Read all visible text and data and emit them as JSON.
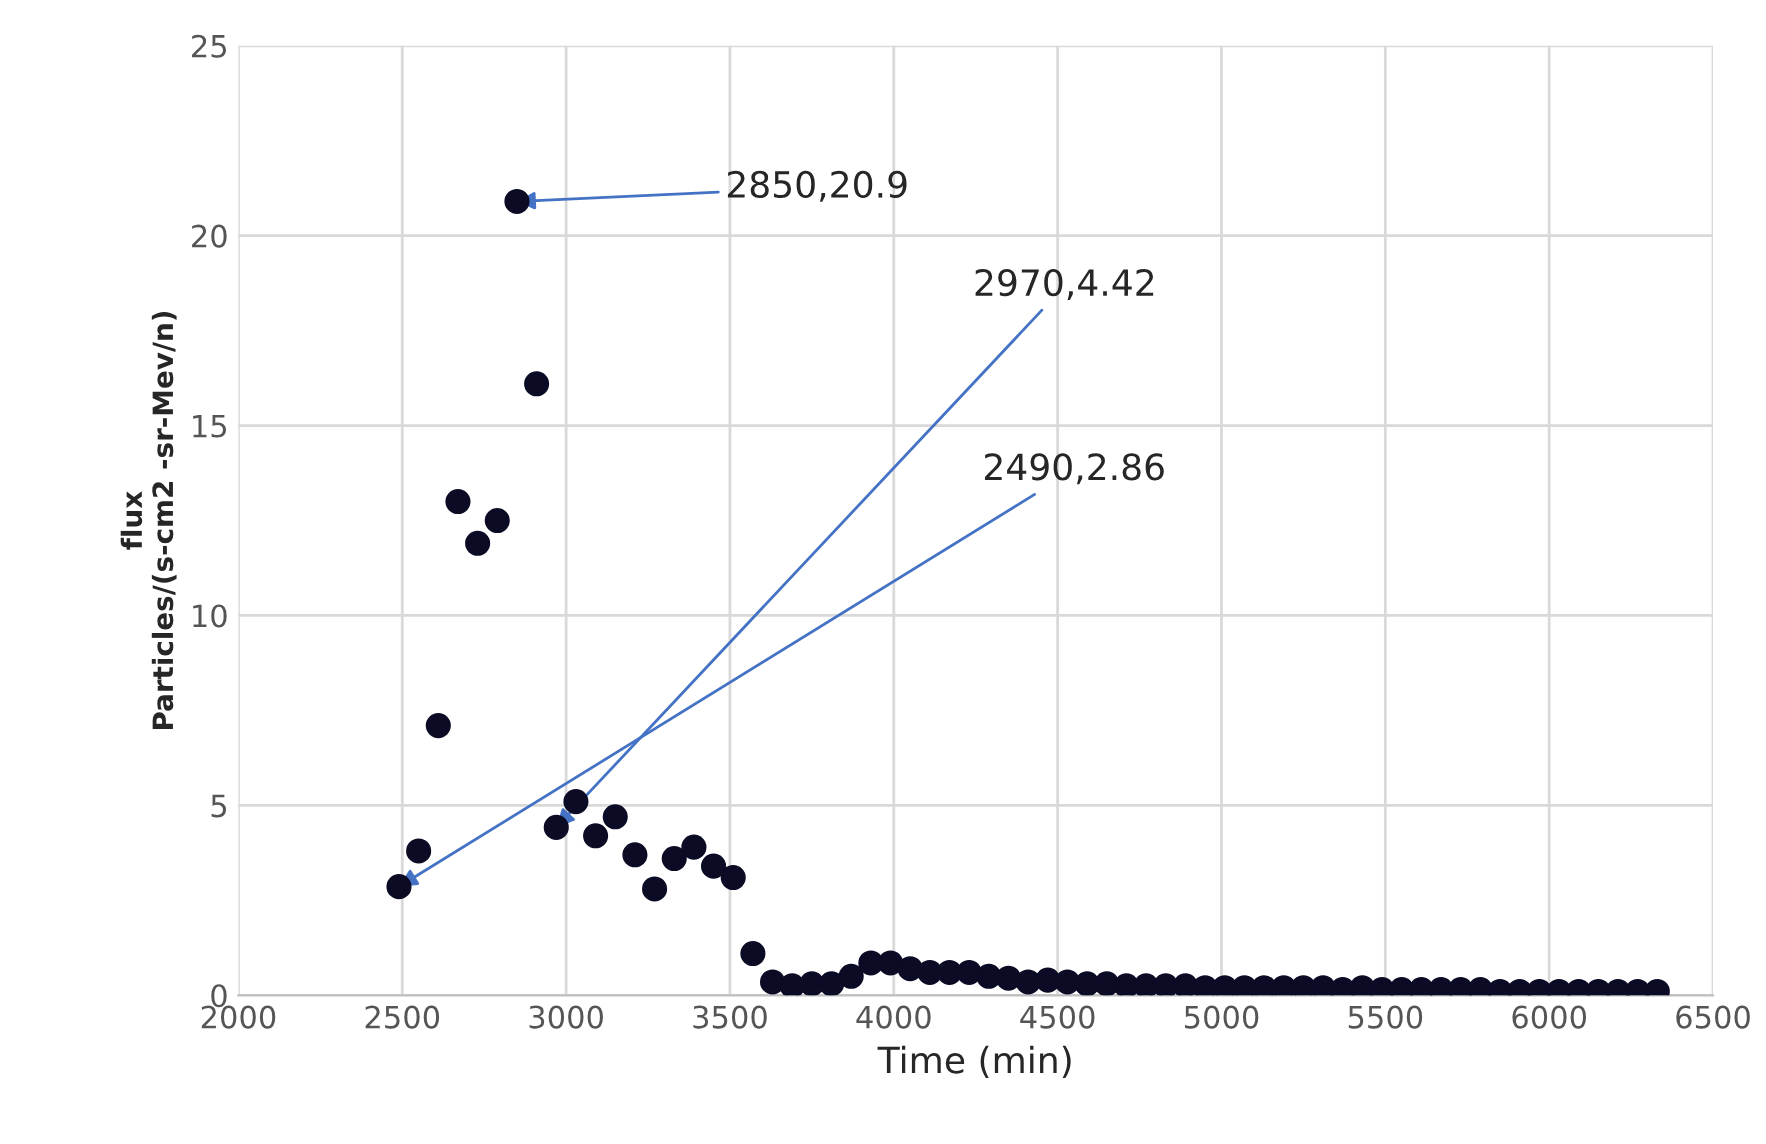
{
  "chart_data": {
    "type": "scatter",
    "xlabel": "Time (min)",
    "ylabel": "flux\nParticles/(s-cm2 -sr-Mev/n)",
    "series": [
      {
        "color": "#0b0b26",
        "x": [
          2490,
          2550,
          2610,
          2670,
          2730,
          2790,
          2850,
          2910,
          2970,
          3030,
          3090,
          3150,
          3210,
          3270,
          3330,
          3390,
          3450,
          3510,
          3570,
          3630,
          3690,
          3750,
          3810,
          3870,
          3930,
          3990,
          4050,
          4110,
          4170,
          4230,
          4290,
          4350,
          4410,
          4470,
          4530,
          4590,
          4650,
          4710,
          4770,
          4830,
          4890,
          4950,
          5010,
          5070,
          5130,
          5190,
          5250,
          5310,
          5370,
          5430,
          5490,
          5550,
          5610,
          5670,
          5730,
          5790,
          5850,
          5910,
          5970,
          6030,
          6090,
          6150,
          6210,
          6270,
          6330
        ],
        "values": [
          2.86,
          3.8,
          7.1,
          13.0,
          11.9,
          12.5,
          20.9,
          16.1,
          4.42,
          5.1,
          4.2,
          4.7,
          3.7,
          2.8,
          3.6,
          3.9,
          3.4,
          3.1,
          1.1,
          0.35,
          0.25,
          0.3,
          0.3,
          0.5,
          0.85,
          0.85,
          0.7,
          0.6,
          0.6,
          0.6,
          0.5,
          0.45,
          0.35,
          0.4,
          0.35,
          0.3,
          0.3,
          0.25,
          0.25,
          0.25,
          0.25,
          0.2,
          0.2,
          0.2,
          0.2,
          0.2,
          0.2,
          0.2,
          0.15,
          0.2,
          0.15,
          0.15,
          0.15,
          0.15,
          0.15,
          0.15,
          0.1,
          0.1,
          0.1,
          0.1,
          0.1,
          0.1,
          0.1,
          0.1,
          0.1
        ]
      }
    ],
    "annotations": [
      {
        "text": "2850,20.9",
        "x": 2850,
        "y": 20.9
      },
      {
        "text": "2970,4.42",
        "x": 2970,
        "y": 4.42
      },
      {
        "text": "2490,2.86",
        "x": 2490,
        "y": 2.86
      }
    ],
    "xlim": [
      2000,
      6500
    ],
    "xticks": [
      2000,
      2500,
      3000,
      3500,
      4000,
      4500,
      5000,
      5500,
      6000,
      6500
    ],
    "ylim": [
      0,
      25
    ],
    "yticks": [
      0,
      5,
      10,
      15,
      20,
      25
    ],
    "grid": true,
    "marker": "circle"
  }
}
